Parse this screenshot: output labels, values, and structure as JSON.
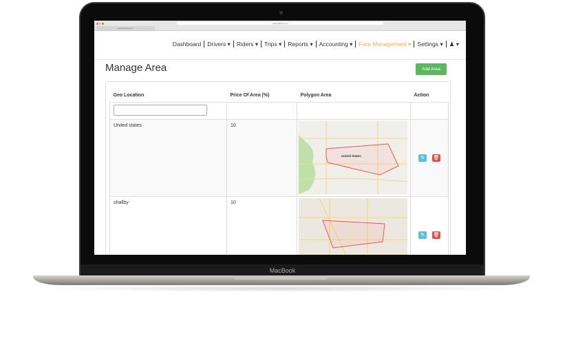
{
  "device": {
    "brand": "MacBook"
  },
  "browser": {
    "url": "www.gospor.com",
    "tab": "www.gospor.com"
  },
  "nav": {
    "items": [
      {
        "label": "Dashboard"
      },
      {
        "label": "Drivers ▾"
      },
      {
        "label": "Riders ▾"
      },
      {
        "label": "Trips ▾"
      },
      {
        "label": "Reports ▾"
      },
      {
        "label": "Accounting ▾"
      },
      {
        "label": "Fare Management ▾",
        "active": true
      },
      {
        "label": "Settings ▾"
      }
    ],
    "user_icon": "user-icon",
    "accent": "#f0ad4e"
  },
  "page": {
    "title": "Manage Area",
    "add_button": "Add Area"
  },
  "table": {
    "headers": [
      "Geo Location",
      "Price Of Area (%)",
      "Polygon Area",
      "Action"
    ],
    "filter_placeholder": "",
    "rows": [
      {
        "geo": "United states",
        "price": "10",
        "map_label": "United States"
      },
      {
        "geo": "shallby",
        "price": "10",
        "map_label": ""
      }
    ]
  }
}
